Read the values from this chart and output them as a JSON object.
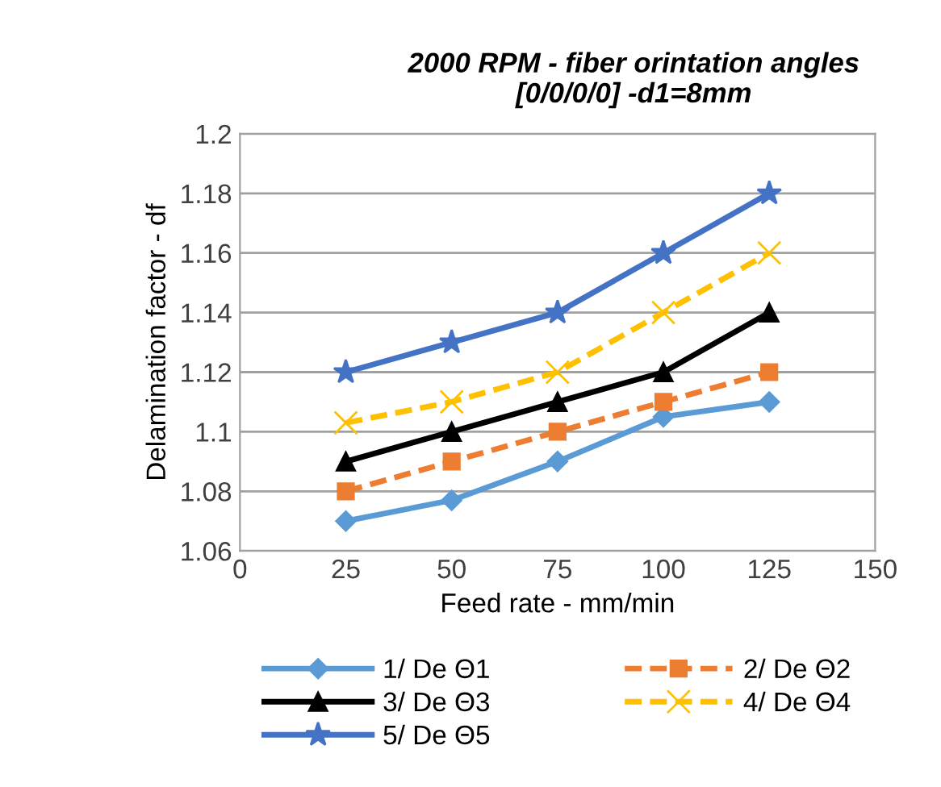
{
  "chart_data": {
    "type": "line",
    "title": "2000 RPM - fiber orintation angles\n[0/0/0/0] -d1=8mm",
    "xlabel": "Feed rate - mm/min",
    "ylabel": "Delamination factor - df",
    "x": [
      25,
      50,
      75,
      100,
      125
    ],
    "series": [
      {
        "name": "1/ De Θ1",
        "color": "#5b9bd5",
        "marker": "diamond",
        "line_style": "solid",
        "values": [
          1.07,
          1.077,
          1.09,
          1.105,
          1.11
        ]
      },
      {
        "name": "2/ De Θ2",
        "color": "#ed7d31",
        "marker": "square",
        "line_style": "dashed",
        "values": [
          1.08,
          1.09,
          1.1,
          1.11,
          1.12
        ]
      },
      {
        "name": "3/ De Θ3",
        "color": "#000000",
        "marker": "triangle",
        "line_style": "solid",
        "values": [
          1.09,
          1.1,
          1.11,
          1.12,
          1.14
        ]
      },
      {
        "name": "4/ De Θ4",
        "color": "#ffc000",
        "marker": "cross",
        "line_style": "dashed",
        "values": [
          1.103,
          1.11,
          1.12,
          1.14,
          1.16
        ]
      },
      {
        "name": "5/ De Θ5",
        "color": "#4472c4",
        "marker": "star",
        "line_style": "solid",
        "values": [
          1.12,
          1.13,
          1.14,
          1.16,
          1.18
        ]
      }
    ],
    "xlim": [
      0,
      150
    ],
    "xticks": [
      0,
      25,
      50,
      75,
      100,
      125,
      150
    ],
    "ylim": [
      1.06,
      1.2
    ],
    "yticks": [
      1.06,
      1.08,
      {
        "value": 1.1,
        "label": "1.1"
      },
      1.12,
      1.14,
      1.16,
      1.18,
      {
        "value": 1.2,
        "label": "1.2"
      }
    ],
    "grid": "y",
    "legend": "bottom"
  }
}
